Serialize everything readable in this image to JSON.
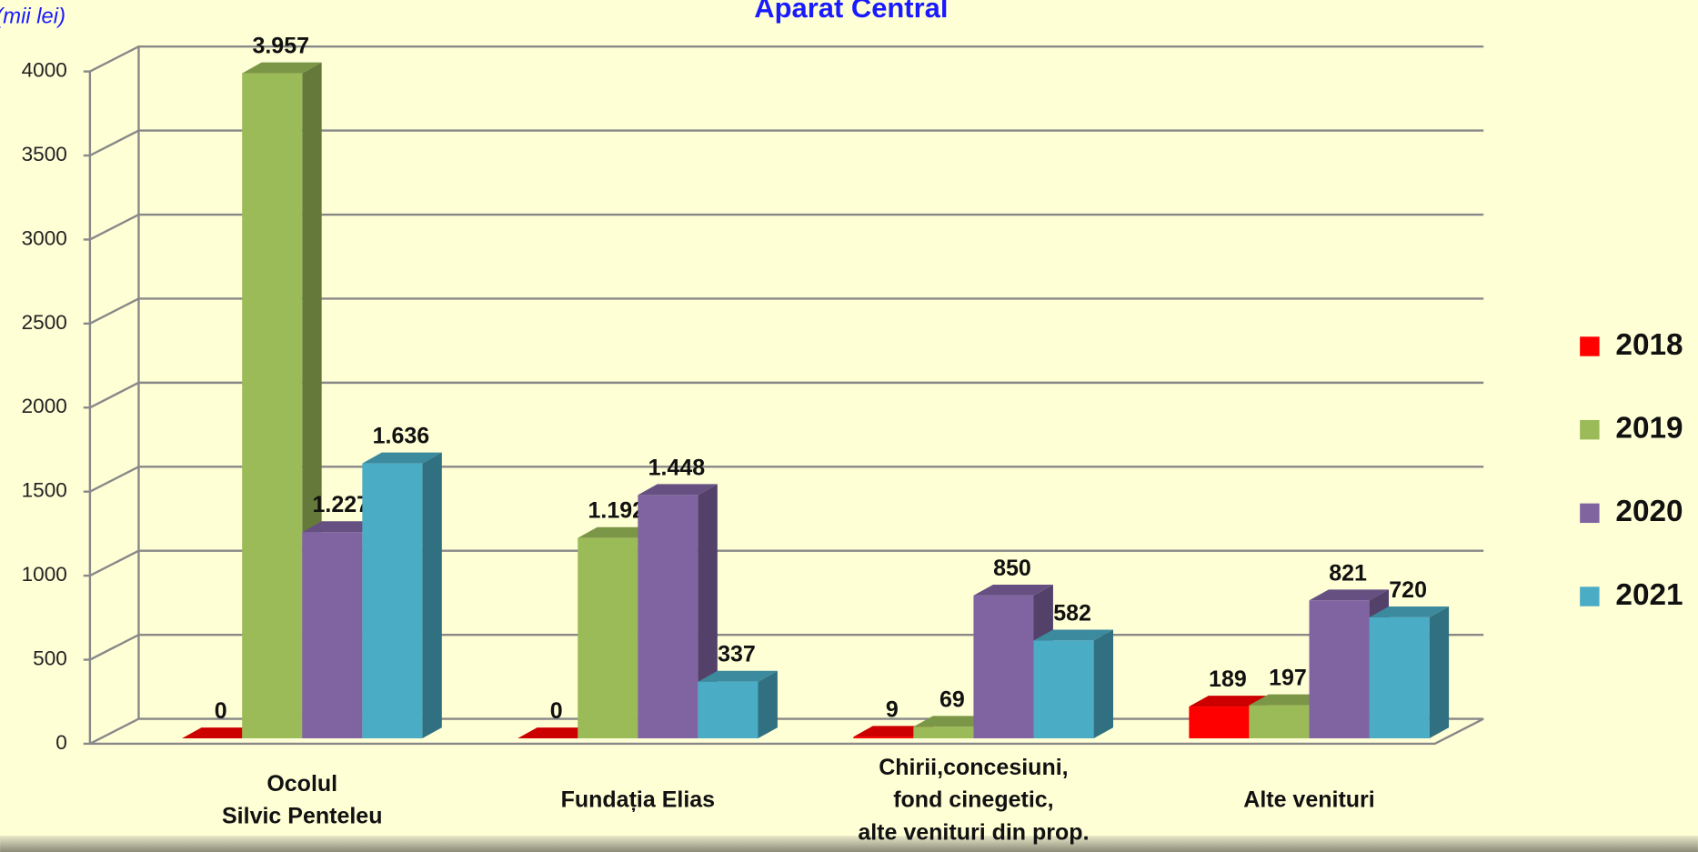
{
  "chart_data": {
    "type": "bar3d",
    "title": "Aparat Central",
    "unit_label": "(mii lei)",
    "categories": [
      [
        "Ocolul",
        "Silvic Penteleu"
      ],
      [
        "Fundația Elias"
      ],
      [
        "Chirii,concesiuni,",
        "fond cinegetic,",
        "alte venituri din prop."
      ],
      [
        "Alte venituri"
      ]
    ],
    "series": [
      {
        "name": "2018",
        "color": "#ff0000",
        "values": [
          0,
          0,
          9,
          189
        ],
        "value_labels": [
          "0",
          "0",
          "9",
          "189"
        ]
      },
      {
        "name": "2019",
        "color": "#9bbb59",
        "values": [
          3957,
          1192,
          69,
          197
        ],
        "value_labels": [
          "3.957",
          "1.192",
          "69",
          "197"
        ]
      },
      {
        "name": "2020",
        "color": "#8064a2",
        "values": [
          1227,
          1448,
          850,
          821
        ],
        "value_labels": [
          "1.227",
          "1.448",
          "850",
          "821"
        ]
      },
      {
        "name": "2021",
        "color": "#4bacc6",
        "values": [
          1636,
          337,
          582,
          720
        ],
        "value_labels": [
          "1.636",
          "337",
          "582",
          "720"
        ]
      }
    ],
    "ylim": [
      0,
      4000
    ],
    "yticks": [
      0,
      500,
      1000,
      1500,
      2000,
      2500,
      3000,
      3500,
      4000
    ],
    "grid": true,
    "legend": "right"
  }
}
